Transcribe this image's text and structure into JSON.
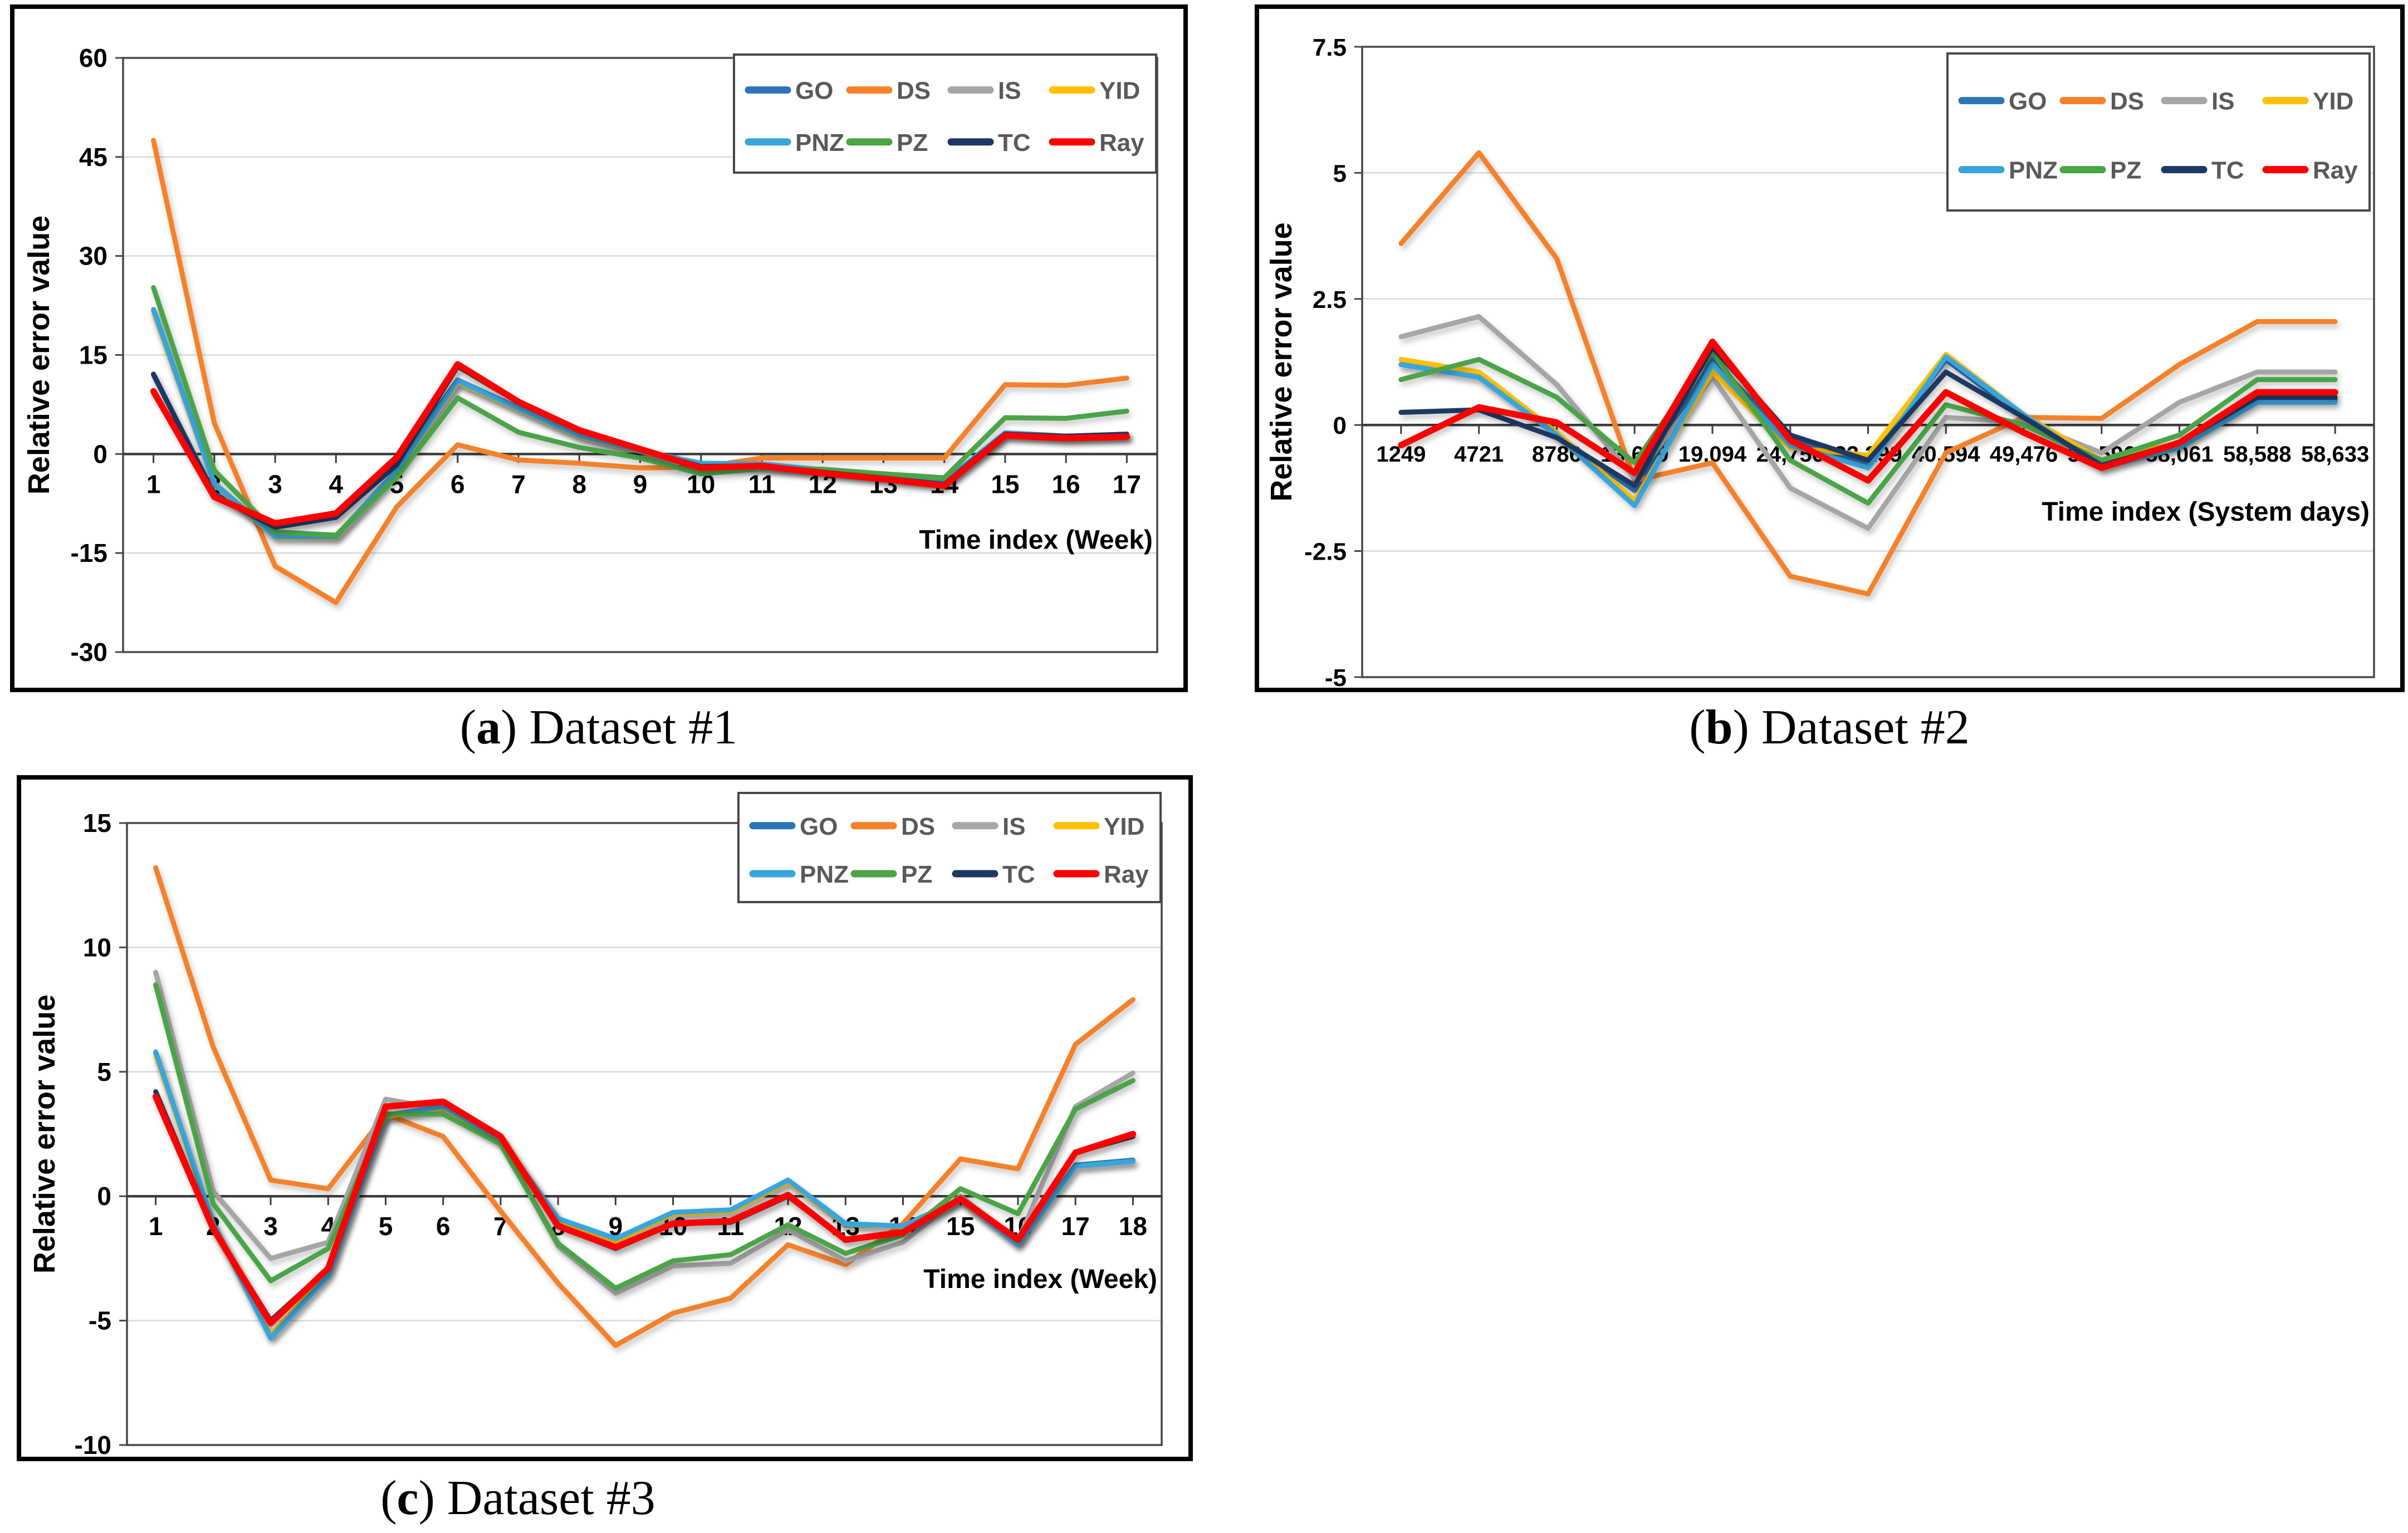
{
  "page": {
    "background": "#ffffff"
  },
  "style": {
    "panel_border": "#000000",
    "frame": "#474747",
    "axis": "#3b3b3b",
    "grid": "#d9d9d9",
    "tick_label": "#000000",
    "legend_text": "#595959"
  },
  "captions": [
    {
      "open": "(",
      "letter": "a",
      "rest": ") Dataset #1"
    },
    {
      "open": "(",
      "letter": "b",
      "rest": ") Dataset #2"
    },
    {
      "open": "(",
      "letter": "c",
      "rest": ") Dataset #3"
    }
  ],
  "chart_data": [
    {
      "type": "line",
      "panel": "a",
      "ylabel": "Relative error value",
      "xlabel": "Time index (Week)",
      "ylim": [
        -30,
        60
      ],
      "yticks": [
        "60",
        "45",
        "30",
        "15",
        "0",
        "-15",
        "-30"
      ],
      "x_categories": [
        "1",
        "2",
        "3",
        "4",
        "5",
        "6",
        "7",
        "8",
        "9",
        "10",
        "11",
        "12",
        "13",
        "14",
        "15",
        "16",
        "17"
      ],
      "grid": true,
      "legend_position": "top-right",
      "legend": [
        "GO",
        "DS",
        "IS",
        "YID",
        "PNZ",
        "PZ",
        "TC",
        "Ray"
      ],
      "series": [
        {
          "name": "GO",
          "color": "#2E74B5",
          "values": [
            12.0,
            -6.0,
            -11.0,
            -9.5,
            -1.5,
            11.2,
            7.0,
            2.9,
            0.5,
            -1.5,
            -1.6,
            -2.4,
            -3.3,
            -4.3,
            3.2,
            2.7,
            3.0
          ]
        },
        {
          "name": "DS",
          "color": "#F5812A",
          "values": [
            47.5,
            4.7,
            -17.0,
            -22.5,
            -8.0,
            1.4,
            -0.9,
            -1.4,
            -2.1,
            -2.0,
            -0.6,
            -0.6,
            -0.6,
            -0.6,
            10.5,
            10.4,
            11.5
          ]
        },
        {
          "name": "IS",
          "color": "#A6A6A6",
          "values": [
            21.8,
            -4.4,
            -12.4,
            -12.4,
            -2.4,
            11.0,
            6.9,
            2.8,
            0.45,
            -1.45,
            -1.55,
            -2.45,
            -3.35,
            -4.25,
            3.15,
            2.6,
            2.85
          ]
        },
        {
          "name": "YID",
          "color": "#FFC000",
          "values": [
            21.6,
            -4.6,
            -12.6,
            -12.6,
            -2.6,
            10.9,
            6.8,
            2.7,
            0.4,
            -1.5,
            -1.6,
            -2.5,
            -3.4,
            -4.3,
            3.1,
            2.55,
            2.8
          ]
        },
        {
          "name": "PNZ",
          "color": "#38A5DD",
          "values": [
            21.9,
            -4.5,
            -12.5,
            -12.5,
            -2.5,
            11.1,
            6.9,
            2.8,
            0.5,
            -1.4,
            -1.5,
            -2.4,
            -3.3,
            -4.2,
            3.2,
            2.6,
            2.8
          ]
        },
        {
          "name": "PZ",
          "color": "#4BA446",
          "values": [
            25.2,
            -2.5,
            -11.8,
            -12.3,
            -3.5,
            8.5,
            3.3,
            1.0,
            -0.6,
            -3.0,
            -2.2,
            -2.3,
            -3.0,
            -3.6,
            5.5,
            5.4,
            6.5
          ]
        },
        {
          "name": "TC",
          "color": "#1F3864",
          "values": [
            12.1,
            -6.3,
            -11.1,
            -9.6,
            -1.6,
            13.3,
            7.8,
            3.5,
            0.7,
            -1.9,
            -1.75,
            -2.75,
            -3.65,
            -4.6,
            3.0,
            2.7,
            3.0
          ]
        },
        {
          "name": "Ray",
          "color": "#FF0000",
          "values": [
            9.5,
            -6.5,
            -10.5,
            -9.0,
            -0.5,
            13.6,
            7.9,
            3.6,
            0.75,
            -2.1,
            -1.8,
            -2.9,
            -3.8,
            -4.8,
            2.8,
            2.4,
            2.6
          ]
        }
      ]
    },
    {
      "type": "line",
      "panel": "b",
      "ylabel": "Relative error value",
      "xlabel": "Time index (System days)",
      "ylim": [
        -5,
        7.5
      ],
      "yticks": [
        "7.5",
        "5",
        "2.5",
        "0",
        "-2.5",
        "-5"
      ],
      "x_categories": [
        "1249",
        "4721",
        "8786",
        "13,669",
        "19,094",
        "24,750",
        "32,299",
        "40,594",
        "49,476",
        "55,596",
        "58,061",
        "58,588",
        "58,633"
      ],
      "grid": true,
      "legend_position": "top-right",
      "legend": [
        "GO",
        "DS",
        "IS",
        "YID",
        "PNZ",
        "PZ",
        "TC",
        "Ray"
      ],
      "series": [
        {
          "name": "GO",
          "color": "#2E74B5",
          "values": [
            1.2,
            0.95,
            -0.2,
            -1.3,
            1.3,
            -0.3,
            -0.75,
            1.3,
            0.15,
            -0.8,
            -0.4,
            0.5,
            0.5
          ]
        },
        {
          "name": "DS",
          "color": "#F5812A",
          "values": [
            3.6,
            5.4,
            3.3,
            -1.1,
            -0.75,
            -3.0,
            -3.35,
            -0.55,
            0.15,
            0.13,
            1.2,
            2.05,
            2.05
          ]
        },
        {
          "name": "IS",
          "color": "#A6A6A6",
          "values": [
            1.75,
            2.15,
            0.8,
            -1.05,
            0.95,
            -1.25,
            -2.05,
            0.15,
            0.05,
            -0.55,
            0.45,
            1.05,
            1.05
          ]
        },
        {
          "name": "YID",
          "color": "#FFC000",
          "values": [
            1.3,
            1.05,
            -0.15,
            -1.5,
            1.05,
            -0.45,
            -0.6,
            1.4,
            0.2,
            -0.7,
            -0.35,
            0.6,
            0.6
          ]
        },
        {
          "name": "PNZ",
          "color": "#38A5DD",
          "values": [
            1.2,
            0.95,
            -0.2,
            -1.6,
            1.2,
            -0.4,
            -0.85,
            1.35,
            0.2,
            -0.85,
            -0.45,
            0.45,
            0.45
          ]
        },
        {
          "name": "PZ",
          "color": "#4BA446",
          "values": [
            0.9,
            1.3,
            0.55,
            -0.75,
            1.45,
            -0.7,
            -1.55,
            0.4,
            0.0,
            -0.7,
            -0.2,
            0.9,
            0.9
          ]
        },
        {
          "name": "TC",
          "color": "#1F3864",
          "values": [
            0.25,
            0.3,
            -0.25,
            -1.2,
            1.55,
            -0.2,
            -0.7,
            1.05,
            0.15,
            -0.8,
            -0.35,
            0.55,
            0.55
          ]
        },
        {
          "name": "Ray",
          "color": "#FF0000",
          "values": [
            -0.4,
            0.35,
            0.05,
            -0.95,
            1.65,
            -0.3,
            -1.1,
            0.65,
            -0.15,
            -0.85,
            -0.35,
            0.65,
            0.65
          ]
        }
      ]
    },
    {
      "type": "line",
      "panel": "c",
      "ylabel": "Relative error value",
      "xlabel": "Time index (Week)",
      "ylim": [
        -10,
        15
      ],
      "yticks": [
        "15",
        "10",
        "5",
        "0",
        "-5",
        "-10"
      ],
      "x_categories": [
        "1",
        "2",
        "3",
        "4",
        "5",
        "6",
        "7",
        "8",
        "9",
        "10",
        "11",
        "12",
        "13",
        "14",
        "15",
        "16",
        "17",
        "18"
      ],
      "grid": true,
      "legend_position": "top-right",
      "legend": [
        "GO",
        "DS",
        "IS",
        "YID",
        "PNZ",
        "PZ",
        "TC",
        "Ray"
      ],
      "series": [
        {
          "name": "GO",
          "color": "#2E74B5",
          "values": [
            5.75,
            -1.1,
            -5.65,
            -3.15,
            3.25,
            3.6,
            2.3,
            -0.9,
            -1.75,
            -0.7,
            -0.6,
            0.6,
            -1.15,
            -1.2,
            -0.1,
            -1.9,
            1.25,
            1.45
          ]
        },
        {
          "name": "DS",
          "color": "#F5812A",
          "values": [
            13.2,
            6.0,
            0.65,
            0.3,
            3.3,
            2.4,
            -0.6,
            -3.5,
            -6.0,
            -4.7,
            -4.1,
            -1.95,
            -2.75,
            -1.1,
            1.5,
            1.1,
            6.1,
            7.9
          ]
        },
        {
          "name": "IS",
          "color": "#A6A6A6",
          "values": [
            9.0,
            0.2,
            -2.5,
            -1.85,
            3.9,
            3.5,
            2.2,
            -2.0,
            -3.9,
            -2.8,
            -2.7,
            -1.35,
            -2.6,
            -1.85,
            0.0,
            -1.8,
            3.6,
            4.95
          ]
        },
        {
          "name": "YID",
          "color": "#FFC000",
          "values": [
            5.7,
            -1.15,
            -5.6,
            -3.1,
            3.2,
            3.55,
            2.25,
            -0.95,
            -1.8,
            -0.72,
            -0.62,
            0.58,
            -1.12,
            -1.22,
            -0.12,
            -1.92,
            1.2,
            1.4
          ]
        },
        {
          "name": "PNZ",
          "color": "#38A5DD",
          "values": [
            5.8,
            -1.1,
            -5.7,
            -3.2,
            3.25,
            3.6,
            2.3,
            -0.9,
            -1.7,
            -0.65,
            -0.55,
            0.65,
            -1.1,
            -1.2,
            -0.1,
            -1.95,
            1.2,
            1.4
          ]
        },
        {
          "name": "PZ",
          "color": "#4BA446",
          "values": [
            8.5,
            -0.3,
            -3.4,
            -2.1,
            3.3,
            3.3,
            2.1,
            -1.9,
            -3.7,
            -2.6,
            -2.35,
            -1.15,
            -2.3,
            -1.55,
            0.3,
            -0.7,
            3.5,
            4.65
          ]
        },
        {
          "name": "TC",
          "color": "#1F3864",
          "values": [
            4.2,
            -1.3,
            -5.0,
            -2.9,
            3.6,
            3.8,
            2.4,
            -1.2,
            -2.1,
            -1.1,
            -1.05,
            0.0,
            -1.75,
            -1.45,
            -0.1,
            -1.7,
            1.75,
            2.4
          ]
        },
        {
          "name": "Ray",
          "color": "#FF0000",
          "values": [
            4.0,
            -1.3,
            -5.1,
            -2.9,
            3.6,
            3.8,
            2.4,
            -1.2,
            -2.05,
            -1.1,
            -1.0,
            0.05,
            -1.75,
            -1.45,
            -0.1,
            -1.75,
            1.75,
            2.5
          ]
        }
      ]
    }
  ]
}
